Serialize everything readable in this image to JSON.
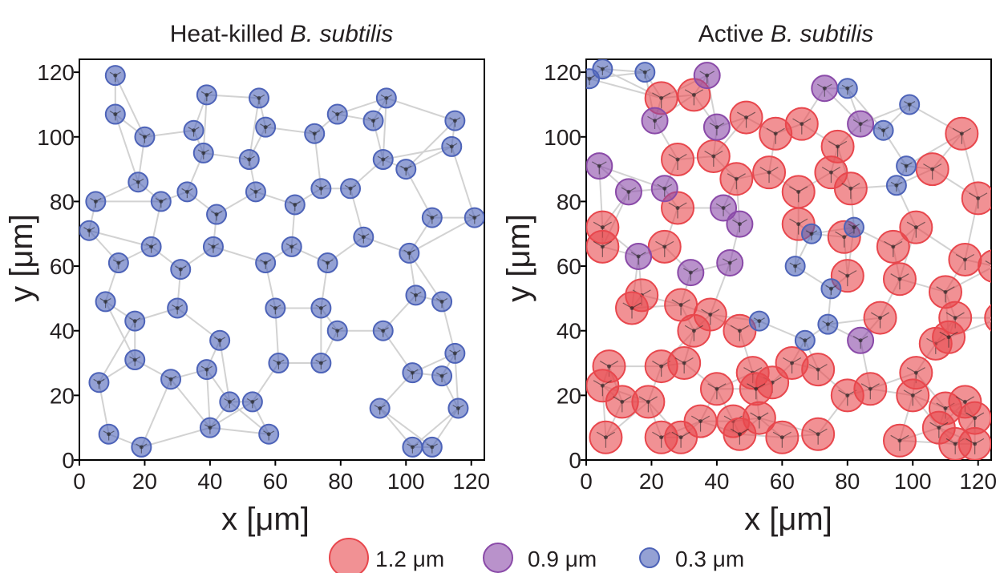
{
  "chart_data": [
    {
      "type": "scatter",
      "title_prefix": "Heat-killed ",
      "title_italic": "B. subtilis",
      "xlabel": "x [μm]",
      "ylabel": "y [μm]",
      "xlim": [
        0,
        124
      ],
      "ylim": [
        0,
        124
      ],
      "xticks": [
        0,
        20,
        40,
        60,
        80,
        100,
        120
      ],
      "yticks": [
        0,
        20,
        40,
        60,
        80,
        100,
        120
      ],
      "series": [
        {
          "name": "0.3 μm",
          "points": [
            [
              11,
              119
            ],
            [
              11,
              107
            ],
            [
              39,
              113
            ],
            [
              55,
              112
            ],
            [
              79,
              107
            ],
            [
              94,
              112
            ],
            [
              20,
              100
            ],
            [
              35,
              102
            ],
            [
              57,
              103
            ],
            [
              72,
              101
            ],
            [
              90,
              105
            ],
            [
              115,
              105
            ],
            [
              38,
              95
            ],
            [
              52,
              93
            ],
            [
              93,
              93
            ],
            [
              114,
              97
            ],
            [
              5,
              80
            ],
            [
              18,
              86
            ],
            [
              25,
              80
            ],
            [
              33,
              83
            ],
            [
              54,
              83
            ],
            [
              66,
              79
            ],
            [
              74,
              84
            ],
            [
              83,
              84
            ],
            [
              100,
              90
            ],
            [
              3,
              71
            ],
            [
              42,
              76
            ],
            [
              108,
              75
            ],
            [
              121,
              75
            ],
            [
              12,
              61
            ],
            [
              22,
              66
            ],
            [
              31,
              59
            ],
            [
              41,
              66
            ],
            [
              57,
              61
            ],
            [
              65,
              66
            ],
            [
              76,
              61
            ],
            [
              87,
              69
            ],
            [
              101,
              64
            ],
            [
              8,
              49
            ],
            [
              17,
              43
            ],
            [
              30,
              47
            ],
            [
              43,
              37
            ],
            [
              60,
              47
            ],
            [
              74,
              47
            ],
            [
              79,
              40
            ],
            [
              93,
              40
            ],
            [
              103,
              51
            ],
            [
              111,
              49
            ],
            [
              17,
              31
            ],
            [
              28,
              25
            ],
            [
              39,
              28
            ],
            [
              61,
              30
            ],
            [
              74,
              30
            ],
            [
              102,
              27
            ],
            [
              115,
              33
            ],
            [
              6,
              24
            ],
            [
              111,
              26
            ],
            [
              46,
              18
            ],
            [
              53,
              18
            ],
            [
              92,
              16
            ],
            [
              116,
              16
            ],
            [
              9,
              8
            ],
            [
              19,
              4
            ],
            [
              40,
              10
            ],
            [
              58,
              8
            ],
            [
              102,
              4
            ],
            [
              108,
              4
            ]
          ]
        }
      ]
    },
    {
      "type": "scatter",
      "title_prefix": "Active ",
      "title_italic": "B. subtilis",
      "xlabel": "x [μm]",
      "ylabel": "y [μm]",
      "xlim": [
        0,
        124
      ],
      "ylim": [
        0,
        124
      ],
      "xticks": [
        0,
        20,
        40,
        60,
        80,
        100,
        120
      ],
      "yticks": [
        0,
        20,
        40,
        60,
        80,
        100,
        120
      ],
      "series": [
        {
          "name": "1.2 μm",
          "points": [
            [
              23,
              112
            ],
            [
              33,
              113
            ],
            [
              49,
              106
            ],
            [
              58,
              101
            ],
            [
              66,
              104
            ],
            [
              77,
              97
            ],
            [
              115,
              101
            ],
            [
              28,
              93
            ],
            [
              39,
              94
            ],
            [
              46,
              87
            ],
            [
              56,
              89
            ],
            [
              65,
              83
            ],
            [
              75,
              89
            ],
            [
              81,
              84
            ],
            [
              106,
              90
            ],
            [
              120,
              81
            ],
            [
              28,
              78
            ],
            [
              5,
              72
            ],
            [
              5,
              66
            ],
            [
              24,
              66
            ],
            [
              65,
              73
            ],
            [
              79,
              69
            ],
            [
              101,
              72
            ],
            [
              94,
              66
            ],
            [
              80,
              57
            ],
            [
              96,
              56
            ],
            [
              116,
              62
            ],
            [
              125,
              60
            ],
            [
              17,
              51
            ],
            [
              14,
              47
            ],
            [
              29,
              48
            ],
            [
              38,
              45
            ],
            [
              33,
              40
            ],
            [
              47,
              40
            ],
            [
              110,
              52
            ],
            [
              113,
              44
            ],
            [
              127,
              44
            ],
            [
              90,
              44
            ],
            [
              7,
              29
            ],
            [
              23,
              29
            ],
            [
              30,
              30
            ],
            [
              63,
              30
            ],
            [
              57,
              24
            ],
            [
              51,
              27
            ],
            [
              71,
              28
            ],
            [
              101,
              27
            ],
            [
              107,
              36
            ],
            [
              111,
              38
            ],
            [
              5,
              23
            ],
            [
              11,
              18
            ],
            [
              19,
              18
            ],
            [
              40,
              22
            ],
            [
              52,
              22
            ],
            [
              80,
              20
            ],
            [
              87,
              22
            ],
            [
              35,
              12
            ],
            [
              45,
              12
            ],
            [
              53,
              13
            ],
            [
              100,
              20
            ],
            [
              110,
              16
            ],
            [
              116,
              18
            ],
            [
              119,
              13
            ],
            [
              6,
              7
            ],
            [
              23,
              7
            ],
            [
              29,
              7
            ],
            [
              47,
              8
            ],
            [
              60,
              7
            ],
            [
              71,
              8
            ],
            [
              96,
              6
            ],
            [
              108,
              10
            ],
            [
              113,
              5
            ],
            [
              119,
              5
            ]
          ]
        },
        {
          "name": "0.9 μm",
          "points": [
            [
              37,
              119
            ],
            [
              73,
              115
            ],
            [
              21,
              105
            ],
            [
              40,
              103
            ],
            [
              84,
              104
            ],
            [
              4,
              91
            ],
            [
              13,
              83
            ],
            [
              24,
              84
            ],
            [
              42,
              78
            ],
            [
              47,
              73
            ],
            [
              16,
              63
            ],
            [
              32,
              58
            ],
            [
              44,
              61
            ],
            [
              84,
              37
            ]
          ]
        },
        {
          "name": "0.3 μm",
          "points": [
            [
              1,
              118
            ],
            [
              5,
              121
            ],
            [
              18,
              120
            ],
            [
              80,
              115
            ],
            [
              99,
              110
            ],
            [
              91,
              102
            ],
            [
              98,
              91
            ],
            [
              95,
              85
            ],
            [
              82,
              72
            ],
            [
              69,
              70
            ],
            [
              64,
              60
            ],
            [
              75,
              53
            ],
            [
              53,
              43
            ],
            [
              74,
              42
            ],
            [
              67,
              37
            ]
          ]
        }
      ]
    }
  ],
  "legend": [
    {
      "label": "1.2 μm",
      "color": "#e8474d"
    },
    {
      "label": "0.9 μm",
      "color": "#8a4aa8"
    },
    {
      "label": "0.3 μm",
      "color": "#4d63b8"
    }
  ],
  "colors": {
    "large": "#e8474d",
    "medium": "#8a4aa8",
    "small": "#4d63b8"
  }
}
